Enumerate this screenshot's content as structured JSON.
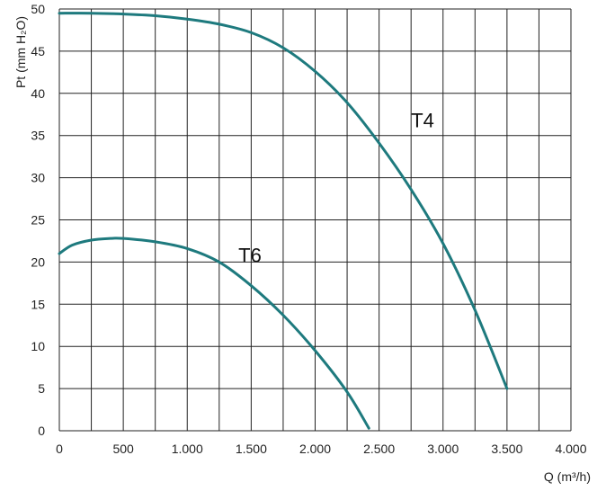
{
  "chart_data": {
    "type": "line",
    "xlabel": "Q (m³/h)",
    "ylabel": "Pt (mm H₂O)",
    "xlim": [
      0,
      4000
    ],
    "ylim": [
      0,
      50
    ],
    "x_ticks": [
      0,
      500,
      1000,
      1500,
      2000,
      2500,
      3000,
      3500,
      4000
    ],
    "x_tick_labels": [
      "0",
      "500",
      "1.000",
      "1.500",
      "2.000",
      "2.500",
      "3.000",
      "3.500",
      "4.000"
    ],
    "y_ticks": [
      0,
      5,
      10,
      15,
      20,
      25,
      30,
      35,
      40,
      45,
      50
    ],
    "y_tick_labels": [
      "0",
      "5",
      "10",
      "15",
      "20",
      "25",
      "30",
      "35",
      "40",
      "45",
      "50"
    ],
    "x_gridline_step": 250,
    "y_gridline_step": 5,
    "grid": true,
    "line_color": "#1e7a7e",
    "series": [
      {
        "name": "T4",
        "x": [
          0,
          250,
          500,
          750,
          1000,
          1250,
          1500,
          1750,
          2000,
          2250,
          2500,
          2750,
          3000,
          3250,
          3500
        ],
        "y": [
          49.5,
          49.5,
          49.4,
          49.2,
          48.8,
          48.2,
          47.2,
          45.4,
          42.6,
          38.9,
          34.1,
          28.6,
          22.2,
          14.3,
          5.0
        ]
      },
      {
        "name": "T6",
        "x": [
          0,
          100,
          250,
          400,
          500,
          750,
          1000,
          1250,
          1500,
          1750,
          2000,
          2250,
          2420
        ],
        "y": [
          21.0,
          22.0,
          22.6,
          22.8,
          22.8,
          22.4,
          21.6,
          20.0,
          17.2,
          13.7,
          9.5,
          4.6,
          0.3
        ]
      }
    ]
  }
}
